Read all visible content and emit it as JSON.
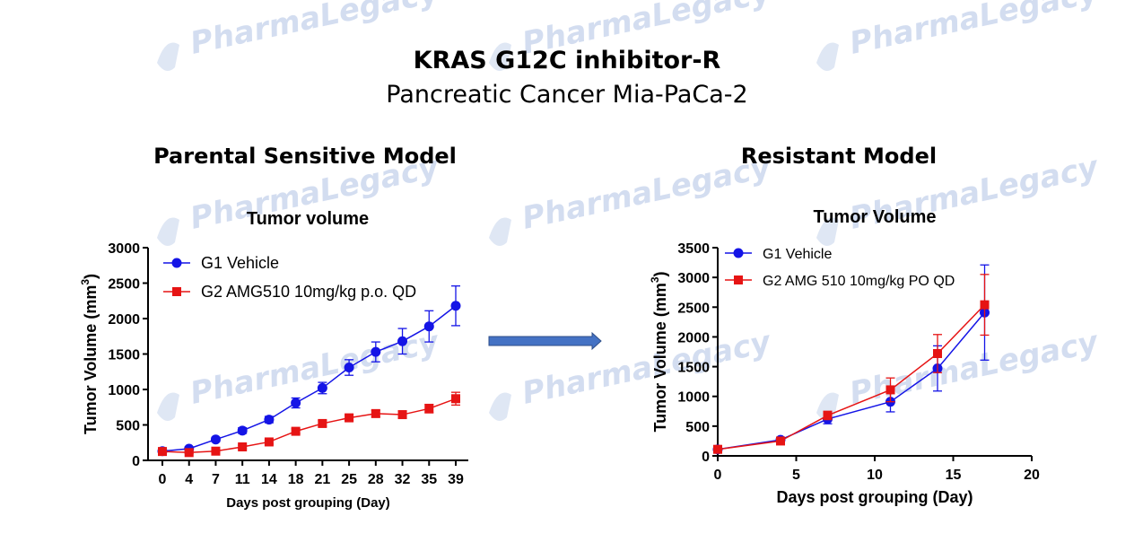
{
  "header": {
    "title": "KRAS G12C  inhibitor-R",
    "subtitle": "Pancreatic Cancer Mia-PaCa-2"
  },
  "panels": {
    "left_title": "Parental Sensitive Model",
    "right_title": "Resistant Model"
  },
  "watermark": "PharmaLegacy",
  "arrow_color": "#4472c4",
  "chart_data": [
    {
      "type": "line",
      "title": "Tumor volume",
      "xlabel": "Days post grouping (Day)",
      "ylabel": "Tumor Volume (mm3)",
      "ylim": [
        0,
        3000
      ],
      "yticks": [
        0,
        500,
        1000,
        1500,
        2000,
        2500,
        3000
      ],
      "categories": [
        "0",
        "4",
        "7",
        "11",
        "14",
        "18",
        "21",
        "25",
        "28",
        "32",
        "35",
        "39"
      ],
      "legend": "top-left",
      "series": [
        {
          "name": "G1 Vehicle",
          "color": "#1414e6",
          "marker": "circle",
          "values": [
            130,
            165,
            295,
            420,
            575,
            810,
            1020,
            1310,
            1530,
            1680,
            1890,
            2180
          ],
          "errors": [
            20,
            25,
            30,
            40,
            45,
            70,
            80,
            110,
            140,
            180,
            220,
            280
          ]
        },
        {
          "name": "G2 AMG510 10mg/kg p.o. QD",
          "color": "#e61414",
          "marker": "square",
          "values": [
            125,
            110,
            130,
            190,
            260,
            410,
            520,
            600,
            660,
            645,
            730,
            870
          ],
          "errors": [
            10,
            15,
            20,
            25,
            30,
            35,
            40,
            40,
            45,
            50,
            60,
            90
          ]
        }
      ]
    },
    {
      "type": "line",
      "title": "Tumor Volume",
      "xlabel": "Days post grouping (Day)",
      "ylabel": "Tumor Volume (mm3)",
      "xlim": [
        0,
        20
      ],
      "xticks": [
        0,
        5,
        10,
        15,
        20
      ],
      "ylim": [
        0,
        3500
      ],
      "yticks": [
        0,
        500,
        1000,
        1500,
        2000,
        2500,
        3000,
        3500
      ],
      "legend": "top-left",
      "series": [
        {
          "name": "G1 Vehicle",
          "color": "#1414e6",
          "marker": "circle",
          "x": [
            0,
            4,
            7,
            11,
            14,
            17
          ],
          "values": [
            110,
            270,
            620,
            910,
            1470,
            2410
          ],
          "errors": [
            15,
            40,
            80,
            170,
            380,
            800
          ]
        },
        {
          "name": "G2 AMG 510 10mg/kg PO QD",
          "color": "#e61414",
          "marker": "square",
          "x": [
            0,
            4,
            7,
            11,
            14,
            17
          ],
          "values": [
            110,
            250,
            680,
            1110,
            1720,
            2540
          ],
          "errors": [
            15,
            35,
            70,
            200,
            320,
            510
          ]
        }
      ]
    }
  ]
}
